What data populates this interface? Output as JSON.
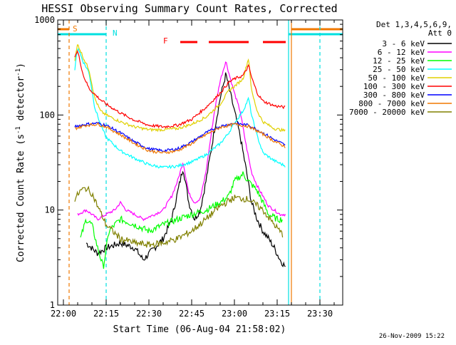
{
  "chart_data": {
    "type": "line",
    "title": "HESSI Observing Summary Count Rates, Corrected",
    "xlabel": "Start Time (06-Aug-04 21:58:02)",
    "ylabel": "Corrected Count Rate (s⁻¹ detector⁻¹)",
    "ylabel_main": "Corrected Count Rate (s",
    "ylabel_mid": " detector",
    "ylabel_close": ")",
    "ylabel_sup": "-1",
    "y_scale": "log",
    "ylim": [
      1,
      1000
    ],
    "xlim": [
      "21:58",
      "23:38"
    ],
    "x_ticks": [
      "22:00",
      "22:15",
      "22:30",
      "22:45",
      "23:00",
      "23:15",
      "23:30"
    ],
    "y_ticks": [
      "1",
      "10",
      "100",
      "1000"
    ],
    "footer": "26-Nov-2009 15:22",
    "legend_position": "right",
    "legend_header": [
      "Det 1,3,4,5,6,9,",
      "Att 0"
    ],
    "flag_labels": {
      "saa": "S",
      "night": "N",
      "flare": "F"
    },
    "flags": {
      "saa": {
        "color": "#f07800",
        "label": "S",
        "bars": [
          [
            "21:58",
            "22:02"
          ],
          [
            "23:20",
            "23:38"
          ]
        ]
      },
      "night": {
        "color": "#00e0e0",
        "label": "N",
        "bars": [
          [
            "21:58",
            "22:15"
          ],
          [
            "23:19",
            "23:38"
          ]
        ]
      },
      "flare": {
        "color": "#ff0000",
        "label": "F",
        "bars": [
          [
            "22:41",
            "22:47"
          ],
          [
            "22:51",
            "23:05"
          ],
          [
            "23:10",
            "23:18"
          ]
        ]
      }
    },
    "vertical_lines": [
      {
        "t": "22:02",
        "color": "#f07800",
        "style": "dashed"
      },
      {
        "t": "22:15",
        "color": "#00e0e0",
        "style": "dashed"
      },
      {
        "t": "23:30",
        "color": "#00e0e0",
        "style": "dashed"
      },
      {
        "t": "23:19",
        "color": "#00e0e0",
        "style": "solid"
      },
      {
        "t": "23:20",
        "color": "#f07800",
        "style": "solid"
      }
    ],
    "series": [
      {
        "name": "3 - 6 keV",
        "color": "#000000",
        "points": [
          [
            "22:08",
            4.5
          ],
          [
            "22:12",
            3.5
          ],
          [
            "22:15",
            4
          ],
          [
            "22:20",
            4.5
          ],
          [
            "22:25",
            4
          ],
          [
            "22:28",
            3
          ],
          [
            "22:32",
            4
          ],
          [
            "22:35",
            5
          ],
          [
            "22:38",
            8
          ],
          [
            "22:40",
            15
          ],
          [
            "22:42",
            28
          ],
          [
            "22:44",
            12
          ],
          [
            "22:46",
            8
          ],
          [
            "22:48",
            10
          ],
          [
            "22:50",
            20
          ],
          [
            "22:53",
            70
          ],
          [
            "22:55",
            150
          ],
          [
            "22:57",
            270
          ],
          [
            "22:58",
            200
          ],
          [
            "23:00",
            110
          ],
          [
            "23:02",
            60
          ],
          [
            "23:04",
            28
          ],
          [
            "23:06",
            12
          ],
          [
            "23:08",
            8
          ],
          [
            "23:10",
            6
          ],
          [
            "23:12",
            5
          ],
          [
            "23:14",
            4
          ],
          [
            "23:16",
            3
          ],
          [
            "23:18",
            2.5
          ]
        ]
      },
      {
        "name": "6 - 12 keV",
        "color": "#ff00ff",
        "points": [
          [
            "22:05",
            9
          ],
          [
            "22:08",
            10
          ],
          [
            "22:10",
            9
          ],
          [
            "22:12",
            8
          ],
          [
            "22:15",
            9
          ],
          [
            "22:18",
            10
          ],
          [
            "22:20",
            12
          ],
          [
            "22:22",
            10
          ],
          [
            "22:25",
            9
          ],
          [
            "22:28",
            8
          ],
          [
            "22:32",
            9
          ],
          [
            "22:35",
            10
          ],
          [
            "22:38",
            14
          ],
          [
            "22:40",
            20
          ],
          [
            "22:42",
            32
          ],
          [
            "22:44",
            15
          ],
          [
            "22:46",
            12
          ],
          [
            "22:48",
            13
          ],
          [
            "22:50",
            25
          ],
          [
            "22:53",
            110
          ],
          [
            "22:55",
            230
          ],
          [
            "22:57",
            370
          ],
          [
            "22:58",
            280
          ],
          [
            "23:00",
            170
          ],
          [
            "23:02",
            110
          ],
          [
            "23:04",
            50
          ],
          [
            "23:06",
            25
          ],
          [
            "23:08",
            18
          ],
          [
            "23:10",
            14
          ],
          [
            "23:12",
            11
          ],
          [
            "23:14",
            10
          ],
          [
            "23:16",
            9
          ],
          [
            "23:18",
            9
          ]
        ]
      },
      {
        "name": "12 - 25 keV",
        "color": "#00ff00",
        "points": [
          [
            "22:06",
            5
          ],
          [
            "22:08",
            8
          ],
          [
            "22:10",
            7
          ],
          [
            "22:12",
            4
          ],
          [
            "22:14",
            2.5
          ],
          [
            "22:16",
            6
          ],
          [
            "22:18",
            7
          ],
          [
            "22:20",
            8
          ],
          [
            "22:25",
            7
          ],
          [
            "22:30",
            6
          ],
          [
            "22:35",
            7
          ],
          [
            "22:40",
            8
          ],
          [
            "22:45",
            9
          ],
          [
            "22:50",
            10
          ],
          [
            "22:55",
            12
          ],
          [
            "22:58",
            14
          ],
          [
            "23:00",
            20
          ],
          [
            "23:03",
            24
          ],
          [
            "23:05",
            20
          ],
          [
            "23:08",
            16
          ],
          [
            "23:10",
            12
          ],
          [
            "23:12",
            9
          ],
          [
            "23:15",
            8
          ],
          [
            "23:17",
            8
          ]
        ]
      },
      {
        "name": "25 - 50 keV",
        "color": "#00ffff",
        "points": [
          [
            "22:04",
            300
          ],
          [
            "22:05",
            520
          ],
          [
            "22:07",
            360
          ],
          [
            "22:09",
            280
          ],
          [
            "22:11",
            120
          ],
          [
            "22:13",
            80
          ],
          [
            "22:15",
            58
          ],
          [
            "22:20",
            42
          ],
          [
            "22:25",
            35
          ],
          [
            "22:30",
            30
          ],
          [
            "22:35",
            28
          ],
          [
            "22:40",
            29
          ],
          [
            "22:45",
            32
          ],
          [
            "22:50",
            38
          ],
          [
            "22:55",
            50
          ],
          [
            "22:58",
            65
          ],
          [
            "23:00",
            82
          ],
          [
            "23:03",
            110
          ],
          [
            "23:05",
            150
          ],
          [
            "23:06",
            100
          ],
          [
            "23:08",
            60
          ],
          [
            "23:10",
            40
          ],
          [
            "23:14",
            33
          ],
          [
            "23:18",
            29
          ]
        ]
      },
      {
        "name": "50 - 100 keV",
        "color": "#e0d000",
        "points": [
          [
            "22:04",
            380
          ],
          [
            "22:05",
            560
          ],
          [
            "22:07",
            400
          ],
          [
            "22:09",
            300
          ],
          [
            "22:11",
            150
          ],
          [
            "22:13",
            110
          ],
          [
            "22:15",
            100
          ],
          [
            "22:20",
            85
          ],
          [
            "22:25",
            75
          ],
          [
            "22:30",
            70
          ],
          [
            "22:35",
            70
          ],
          [
            "22:40",
            72
          ],
          [
            "22:45",
            80
          ],
          [
            "22:50",
            95
          ],
          [
            "22:55",
            130
          ],
          [
            "22:58",
            180
          ],
          [
            "23:00",
            200
          ],
          [
            "23:03",
            240
          ],
          [
            "23:05",
            400
          ],
          [
            "23:06",
            180
          ],
          [
            "23:08",
            110
          ],
          [
            "23:10",
            85
          ],
          [
            "23:14",
            72
          ],
          [
            "23:18",
            68
          ]
        ]
      },
      {
        "name": "100 - 300 keV",
        "color": "#ff0000",
        "points": [
          [
            "22:04",
            420
          ],
          [
            "22:05",
            470
          ],
          [
            "22:07",
            260
          ],
          [
            "22:09",
            190
          ],
          [
            "22:11",
            165
          ],
          [
            "22:13",
            145
          ],
          [
            "22:15",
            130
          ],
          [
            "22:20",
            105
          ],
          [
            "22:25",
            88
          ],
          [
            "22:30",
            78
          ],
          [
            "22:35",
            75
          ],
          [
            "22:40",
            78
          ],
          [
            "22:45",
            90
          ],
          [
            "22:50",
            120
          ],
          [
            "22:55",
            170
          ],
          [
            "22:58",
            220
          ],
          [
            "23:00",
            240
          ],
          [
            "23:03",
            260
          ],
          [
            "23:05",
            330
          ],
          [
            "23:06",
            250
          ],
          [
            "23:08",
            170
          ],
          [
            "23:10",
            140
          ],
          [
            "23:14",
            125
          ],
          [
            "23:18",
            120
          ]
        ]
      },
      {
        "name": "300 - 800 keV",
        "color": "#0000ff",
        "points": [
          [
            "22:04",
            76
          ],
          [
            "22:08",
            80
          ],
          [
            "22:12",
            82
          ],
          [
            "22:15",
            78
          ],
          [
            "22:20",
            65
          ],
          [
            "22:25",
            52
          ],
          [
            "22:30",
            44
          ],
          [
            "22:35",
            42
          ],
          [
            "22:40",
            44
          ],
          [
            "22:45",
            52
          ],
          [
            "22:50",
            65
          ],
          [
            "22:55",
            76
          ],
          [
            "23:00",
            82
          ],
          [
            "23:05",
            78
          ],
          [
            "23:10",
            65
          ],
          [
            "23:14",
            55
          ],
          [
            "23:18",
            48
          ]
        ]
      },
      {
        "name": "800 - 7000 keV",
        "color": "#f07800",
        "points": [
          [
            "22:04",
            72
          ],
          [
            "22:08",
            78
          ],
          [
            "22:12",
            80
          ],
          [
            "22:15",
            75
          ],
          [
            "22:20",
            62
          ],
          [
            "22:25",
            50
          ],
          [
            "22:30",
            42
          ],
          [
            "22:35",
            40
          ],
          [
            "22:40",
            42
          ],
          [
            "22:45",
            50
          ],
          [
            "22:50",
            62
          ],
          [
            "22:55",
            74
          ],
          [
            "23:00",
            80
          ],
          [
            "23:05",
            76
          ],
          [
            "23:10",
            63
          ],
          [
            "23:14",
            53
          ],
          [
            "23:18",
            46
          ]
        ]
      },
      {
        "name": "7000 - 20000 keV",
        "color": "#808000",
        "points": [
          [
            "22:04",
            13
          ],
          [
            "22:06",
            16
          ],
          [
            "22:08",
            17
          ],
          [
            "22:10",
            15
          ],
          [
            "22:12",
            11
          ],
          [
            "22:15",
            7
          ],
          [
            "22:20",
            5
          ],
          [
            "22:25",
            4.5
          ],
          [
            "22:30",
            4.3
          ],
          [
            "22:35",
            4.5
          ],
          [
            "22:40",
            5
          ],
          [
            "22:45",
            6
          ],
          [
            "22:50",
            8
          ],
          [
            "22:55",
            11
          ],
          [
            "23:00",
            13.5
          ],
          [
            "23:05",
            13
          ],
          [
            "23:10",
            10
          ],
          [
            "23:14",
            7
          ],
          [
            "23:17",
            5.5
          ]
        ]
      }
    ]
  }
}
